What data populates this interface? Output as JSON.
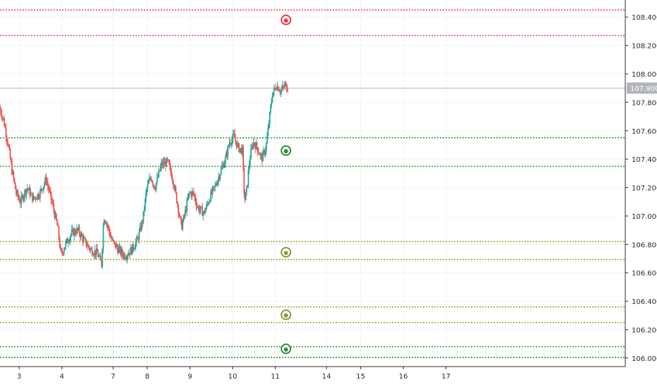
{
  "chart_data": {
    "type": "candlestick",
    "title": "",
    "xlabel": "",
    "ylabel": "",
    "ylim": [
      105.94,
      108.52
    ],
    "xlim": [
      2.55,
      17.2
    ],
    "y_ticks": [
      "108.400",
      "108.200",
      "108.000",
      "107.800",
      "107.600",
      "107.400",
      "107.200",
      "107.000",
      "106.800",
      "106.600",
      "106.400",
      "106.200",
      "106.000"
    ],
    "x_ticks": [
      {
        "label": "3",
        "x": 3
      },
      {
        "label": "4",
        "x": 4
      },
      {
        "label": "7",
        "x": 5.2
      },
      {
        "label": "8",
        "x": 6.0
      },
      {
        "label": "9",
        "x": 7.0
      },
      {
        "label": "10",
        "x": 8.0
      },
      {
        "label": "11",
        "x": 9.0
      },
      {
        "label": "14",
        "x": 10.2
      },
      {
        "label": "15",
        "x": 11.0
      },
      {
        "label": "16",
        "x": 12.0
      },
      {
        "label": "17",
        "x": 13.0
      }
    ],
    "current_price": {
      "label": "107.900",
      "value": 107.9,
      "color": "#b2b5be"
    },
    "levels": [
      {
        "value": 108.45,
        "color": "#f23645"
      },
      {
        "value": 108.27,
        "color": "#f23645"
      },
      {
        "value": 107.55,
        "color": "#1e9a20"
      },
      {
        "value": 107.35,
        "color": "#1e9a20"
      },
      {
        "value": 106.82,
        "color": "#9c9c00"
      },
      {
        "value": 106.695,
        "color": "#9c9c00"
      },
      {
        "value": 106.36,
        "color": "#9c9c00"
      },
      {
        "value": 106.25,
        "color": "#9c9c00"
      },
      {
        "value": 106.08,
        "color": "#1e9a20"
      },
      {
        "value": 106.005,
        "color": "#1e9a20"
      }
    ],
    "markers": [
      {
        "x": 9.25,
        "y": 108.38,
        "color": "#f23645"
      },
      {
        "x": 9.25,
        "y": 107.46,
        "color": "#2e8b3a"
      },
      {
        "x": 9.25,
        "y": 106.745,
        "color": "#8a9a3c"
      },
      {
        "x": 9.25,
        "y": 106.305,
        "color": "#8a9a3c"
      },
      {
        "x": 9.25,
        "y": 106.065,
        "color": "#2e8b3a"
      }
    ],
    "colors": {
      "up": "#26a69a",
      "down": "#ef5350",
      "grid": "#f0f3fa",
      "axis": "#2b2b2b"
    },
    "price_path": [
      [
        2.55,
        107.77
      ],
      [
        2.65,
        107.68
      ],
      [
        2.75,
        107.52
      ],
      [
        2.85,
        107.32
      ],
      [
        2.95,
        107.16
      ],
      [
        3.05,
        107.1
      ],
      [
        3.2,
        107.2
      ],
      [
        3.35,
        107.12
      ],
      [
        3.5,
        107.16
      ],
      [
        3.65,
        107.26
      ],
      [
        3.8,
        107.08
      ],
      [
        3.92,
        106.92
      ],
      [
        4.0,
        106.72
      ],
      [
        4.1,
        106.8
      ],
      [
        4.25,
        106.88
      ],
      [
        4.4,
        106.9
      ],
      [
        4.55,
        106.82
      ],
      [
        4.7,
        106.76
      ],
      [
        4.85,
        106.74
      ],
      [
        4.95,
        106.66
      ],
      [
        5.0,
        107.0
      ],
      [
        5.06,
        106.96
      ],
      [
        5.2,
        106.82
      ],
      [
        5.35,
        106.76
      ],
      [
        5.5,
        106.72
      ],
      [
        5.65,
        106.76
      ],
      [
        5.8,
        106.84
      ],
      [
        5.92,
        106.98
      ],
      [
        6.0,
        107.18
      ],
      [
        6.1,
        107.28
      ],
      [
        6.2,
        107.2
      ],
      [
        6.35,
        107.36
      ],
      [
        6.5,
        107.38
      ],
      [
        6.62,
        107.26
      ],
      [
        6.72,
        107.1
      ],
      [
        6.82,
        106.92
      ],
      [
        6.92,
        107.04
      ],
      [
        7.0,
        107.16
      ],
      [
        7.1,
        107.16
      ],
      [
        7.2,
        107.06
      ],
      [
        7.35,
        107.02
      ],
      [
        7.5,
        107.14
      ],
      [
        7.6,
        107.2
      ],
      [
        7.72,
        107.3
      ],
      [
        7.85,
        107.4
      ],
      [
        7.95,
        107.52
      ],
      [
        8.05,
        107.56
      ],
      [
        8.15,
        107.48
      ],
      [
        8.25,
        107.46
      ],
      [
        8.3,
        107.1
      ],
      [
        8.35,
        107.18
      ],
      [
        8.42,
        107.4
      ],
      [
        8.5,
        107.52
      ],
      [
        8.6,
        107.48
      ],
      [
        8.7,
        107.4
      ],
      [
        8.8,
        107.48
      ],
      [
        8.88,
        107.68
      ],
      [
        8.95,
        107.86
      ],
      [
        9.05,
        107.92
      ],
      [
        9.15,
        107.88
      ],
      [
        9.25,
        107.92
      ],
      [
        9.3,
        107.9
      ]
    ]
  }
}
